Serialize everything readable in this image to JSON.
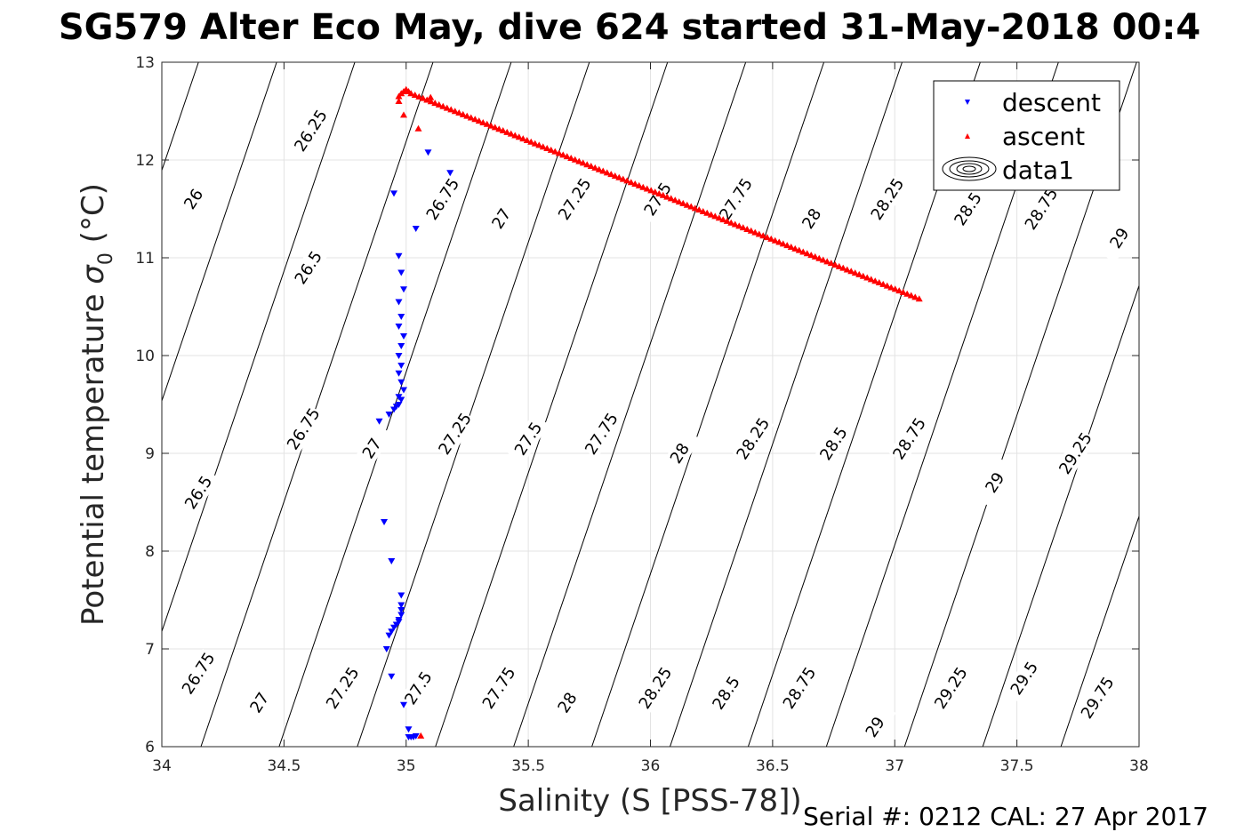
{
  "chart_data": {
    "type": "scatter",
    "title": "SG579 Alter Eco May, dive 624 started 31-May-2018 00:4",
    "xlabel": "Salinity (S [PSS-78])",
    "ylabel_main": "Potential temperature ",
    "ylabel_sigma": "σ",
    "ylabel_sub": "0",
    "ylabel_unit": " (°C)",
    "xlim": [
      34,
      38
    ],
    "ylim": [
      6,
      13
    ],
    "xticks": [
      34,
      34.5,
      35,
      35.5,
      36,
      36.5,
      37,
      37.5,
      38
    ],
    "xtick_labels": [
      "34",
      "34.5",
      "35",
      "35.5",
      "36",
      "36.5",
      "37",
      "37.5",
      "38"
    ],
    "yticks": [
      6,
      7,
      8,
      9,
      10,
      11,
      12,
      13
    ],
    "ytick_labels": [
      "6",
      "7",
      "8",
      "9",
      "10",
      "11",
      "12",
      "13"
    ],
    "grid": true,
    "legend_position": "top-right",
    "legend": [
      {
        "label": "descent",
        "marker": "triangle-down",
        "color": "#0000ff"
      },
      {
        "label": "ascent",
        "marker": "triangle-up",
        "color": "#ff0000"
      },
      {
        "label": "data1",
        "marker": "contour",
        "color": "#000000"
      }
    ],
    "contours": {
      "levels": [
        26,
        26.25,
        26.5,
        26.75,
        27,
        27.25,
        27.5,
        27.75,
        28,
        28.25,
        28.5,
        28.75,
        29,
        29.25,
        29.5,
        29.75
      ],
      "color": "#000000",
      "labels": [
        {
          "text": "26",
          "s": 34.13,
          "t": 11.6
        },
        {
          "text": "26.25",
          "s": 34.61,
          "t": 12.3
        },
        {
          "text": "26.5",
          "s": 34.6,
          "t": 10.9
        },
        {
          "text": "26.75",
          "s": 35.15,
          "t": 11.6
        },
        {
          "text": "27",
          "s": 35.39,
          "t": 11.4
        },
        {
          "text": "27.25",
          "s": 35.69,
          "t": 11.6
        },
        {
          "text": "27.5",
          "s": 36.03,
          "t": 11.6
        },
        {
          "text": "27.75",
          "s": 36.35,
          "t": 11.6
        },
        {
          "text": "28",
          "s": 36.66,
          "t": 11.4
        },
        {
          "text": "28.25",
          "s": 36.97,
          "t": 11.6
        },
        {
          "text": "28.5",
          "s": 37.3,
          "t": 11.5
        },
        {
          "text": "28.75",
          "s": 37.6,
          "t": 11.5
        },
        {
          "text": "29",
          "s": 37.92,
          "t": 11.2
        },
        {
          "text": "26.75",
          "s": 34.58,
          "t": 9.25
        },
        {
          "text": "26.5",
          "s": 34.15,
          "t": 8.6
        },
        {
          "text": "27",
          "s": 34.86,
          "t": 9.05
        },
        {
          "text": "27.25",
          "s": 35.2,
          "t": 9.2
        },
        {
          "text": "27.5",
          "s": 35.5,
          "t": 9.15
        },
        {
          "text": "27.75",
          "s": 35.8,
          "t": 9.2
        },
        {
          "text": "28",
          "s": 36.12,
          "t": 9.0
        },
        {
          "text": "28.25",
          "s": 36.42,
          "t": 9.15
        },
        {
          "text": "28.5",
          "s": 36.75,
          "t": 9.1
        },
        {
          "text": "28.75",
          "s": 37.06,
          "t": 9.15
        },
        {
          "text": "29",
          "s": 37.41,
          "t": 8.7
        },
        {
          "text": "29.25",
          "s": 37.74,
          "t": 9.0
        },
        {
          "text": "26.75",
          "s": 34.15,
          "t": 6.75
        },
        {
          "text": "27",
          "s": 34.4,
          "t": 6.45
        },
        {
          "text": "27.25",
          "s": 34.74,
          "t": 6.6
        },
        {
          "text": "27.5",
          "s": 35.05,
          "t": 6.6
        },
        {
          "text": "27.75",
          "s": 35.38,
          "t": 6.6
        },
        {
          "text": "28",
          "s": 35.66,
          "t": 6.45
        },
        {
          "text": "28.25",
          "s": 36.02,
          "t": 6.6
        },
        {
          "text": "28.5",
          "s": 36.31,
          "t": 6.55
        },
        {
          "text": "28.75",
          "s": 36.61,
          "t": 6.6
        },
        {
          "text": "29",
          "s": 36.92,
          "t": 6.2
        },
        {
          "text": "29.25",
          "s": 37.23,
          "t": 6.6
        },
        {
          "text": "29.5",
          "s": 37.53,
          "t": 6.7
        },
        {
          "text": "29.75",
          "s": 37.83,
          "t": 6.5
        }
      ]
    },
    "series": [
      {
        "name": "descent",
        "marker": "triangle-down",
        "color": "#0000ff",
        "x": [
          35.09,
          35.18,
          34.95,
          35.04,
          34.97,
          34.98,
          34.99,
          34.97,
          34.98,
          34.97,
          34.99,
          34.98,
          34.97,
          34.98,
          34.97,
          34.98,
          34.99,
          34.97,
          34.98,
          34.97,
          34.96,
          34.95,
          34.93,
          34.89,
          34.91,
          34.94,
          34.98,
          34.98,
          34.98,
          34.98,
          34.97,
          34.97,
          34.96,
          34.95,
          34.94,
          34.93,
          34.92,
          34.94,
          34.99,
          35.01,
          35.01,
          35.02,
          35.03,
          35.04
        ],
        "y": [
          12.08,
          11.87,
          11.66,
          11.3,
          11.02,
          10.85,
          10.68,
          10.55,
          10.4,
          10.3,
          10.2,
          10.1,
          10.0,
          9.9,
          9.82,
          9.73,
          9.65,
          9.58,
          9.55,
          9.5,
          9.48,
          9.45,
          9.4,
          9.33,
          8.3,
          7.9,
          7.55,
          7.45,
          7.4,
          7.35,
          7.3,
          7.28,
          7.25,
          7.22,
          7.18,
          7.14,
          7.0,
          6.72,
          6.43,
          6.18,
          6.1,
          6.1,
          6.1,
          6.11
        ]
      },
      {
        "name": "ascent",
        "marker": "triangle-up",
        "color": "#ff0000",
        "x": [
          35.06,
          34.99,
          35.05,
          34.97,
          34.97,
          34.98,
          34.99,
          35.0,
          35.01,
          35.1
        ],
        "y": [
          6.11,
          12.46,
          12.32,
          12.6,
          12.65,
          12.68,
          12.7,
          12.72,
          12.7,
          12.64
        ],
        "line_segment": {
          "x0": 35.02,
          "y0": 12.68,
          "x1": 37.1,
          "y1": 10.58,
          "count": 128
        }
      }
    ]
  },
  "footer": {
    "serial": "Serial #: 0212  CAL: 27 Apr 2017"
  }
}
